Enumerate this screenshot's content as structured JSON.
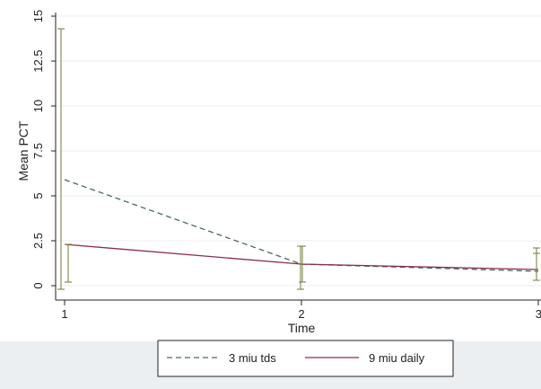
{
  "chart_data": {
    "type": "line",
    "title": "",
    "xlabel": "Time",
    "ylabel": "Mean PCT",
    "x": [
      1,
      2,
      3
    ],
    "xlim": [
      1,
      3
    ],
    "ylim": [
      0,
      15
    ],
    "x_ticks": [
      "1",
      "2",
      "3"
    ],
    "y_ticks": [
      "0",
      "2.5",
      "5",
      "7.5",
      "10",
      "12.5",
      "15"
    ],
    "grid": true,
    "legend_position": "bottom",
    "series": [
      {
        "name": "3 miu tds",
        "style": "dashed",
        "color": "#4a6a62",
        "values": [
          5.9,
          1.2,
          0.8
        ],
        "lower": [
          -0.2,
          -0.2,
          0.3
        ],
        "upper": [
          14.3,
          2.2,
          2.1
        ]
      },
      {
        "name": "9 miu daily",
        "style": "solid",
        "color": "#8a3048",
        "values": [
          2.3,
          1.2,
          0.9
        ],
        "lower": [
          0.2,
          0.2,
          0.3
        ],
        "upper": [
          2.3,
          2.2,
          1.8
        ]
      }
    ]
  }
}
